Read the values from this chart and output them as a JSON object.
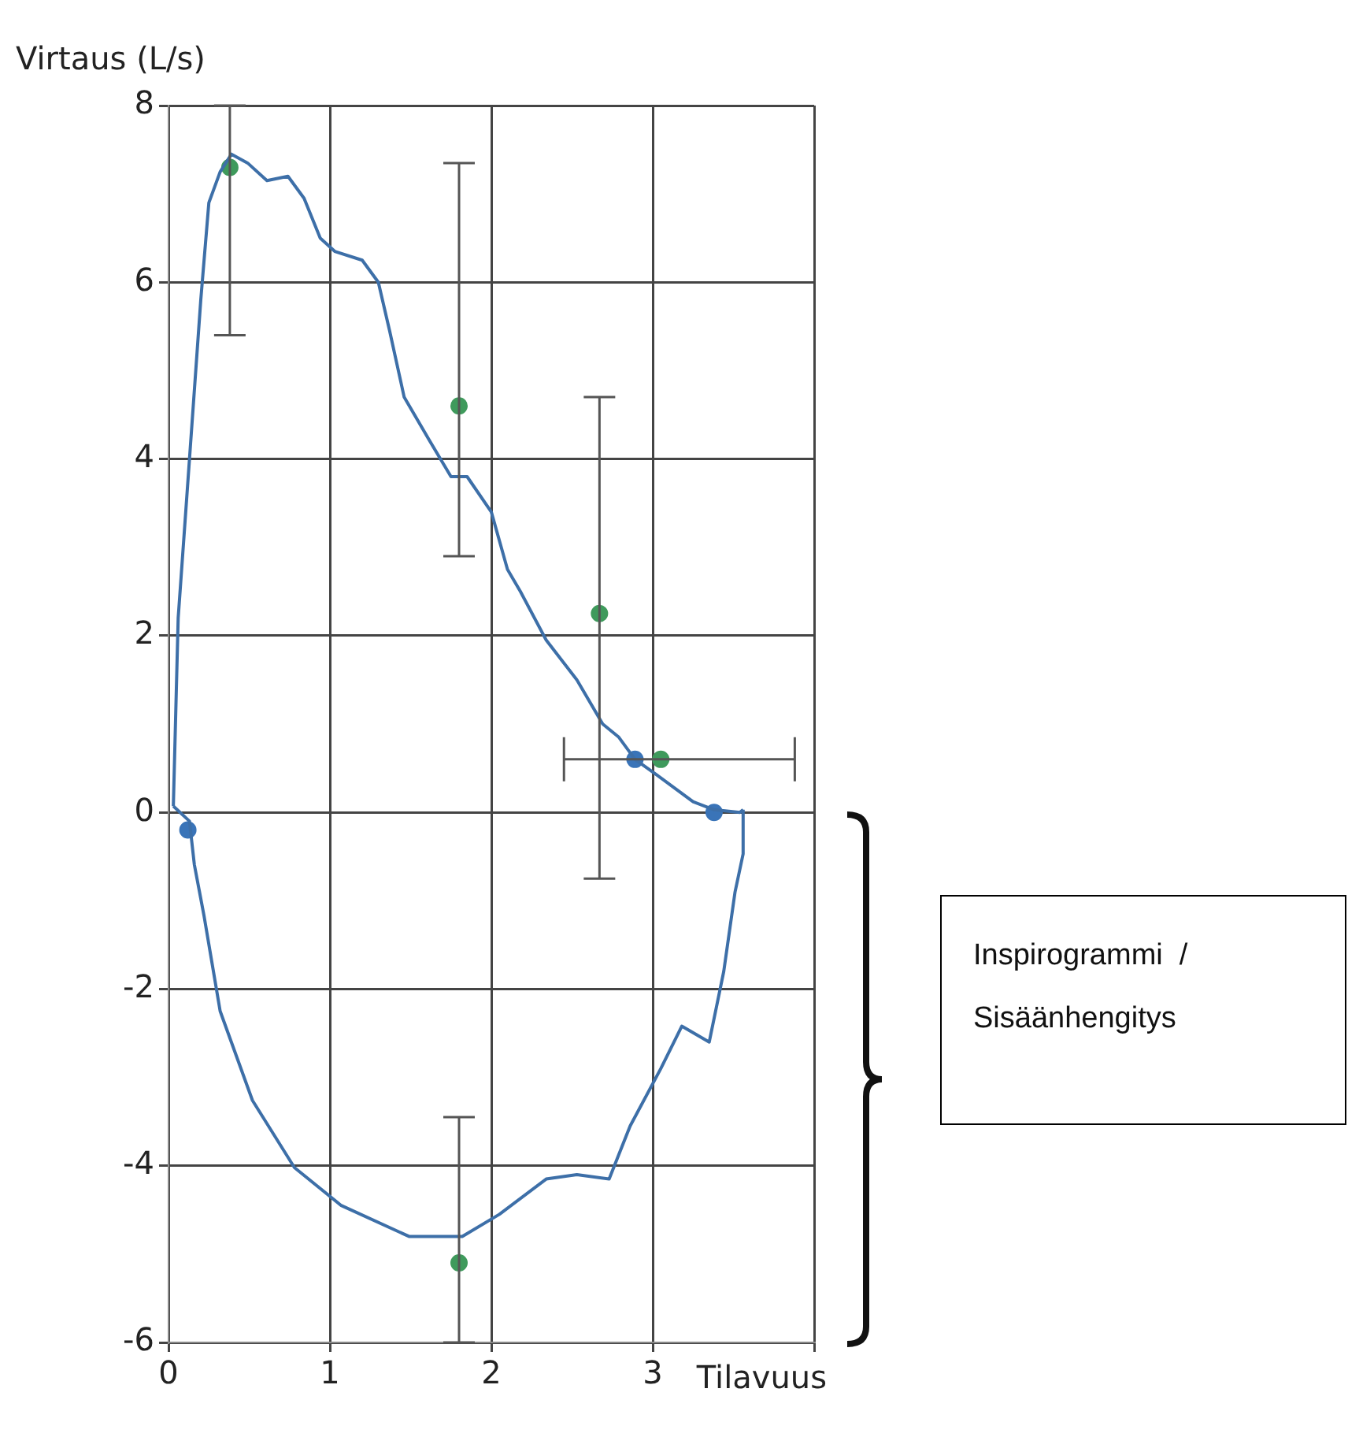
{
  "chart_data": {
    "type": "line",
    "ylabel": "Virtaus (L/s)",
    "xlabel": "Tilavuus",
    "xlim": [
      0,
      4
    ],
    "xticks": [
      0,
      1,
      2,
      3,
      {
        "value": 4,
        "label": null
      }
    ],
    "ylim": [
      -6,
      8
    ],
    "yticks": [
      -6,
      -4,
      -2,
      0,
      2,
      4,
      6,
      8
    ],
    "grid": true,
    "annotations": [
      "Inspirogrammi  /\nSisäänhengitys"
    ],
    "series": [
      {
        "color": "#3d6fa8",
        "marker": "none",
        "x": [
          0.03,
          0.06,
          0.13,
          0.2,
          0.25,
          0.32,
          0.39,
          0.49,
          0.61,
          0.74,
          0.84,
          0.94,
          1.03,
          1.2,
          1.3,
          1.37,
          1.46,
          1.62,
          1.75,
          1.85,
          2.0,
          2.1,
          2.18,
          2.34,
          2.53,
          2.69,
          2.79,
          2.89,
          3.02,
          3.25,
          3.38,
          3.54,
          3.56
        ],
        "values": [
          0.07,
          2.2,
          4.0,
          5.8,
          6.9,
          7.25,
          7.45,
          7.35,
          7.15,
          7.2,
          6.95,
          6.5,
          6.35,
          6.25,
          6.0,
          5.45,
          4.7,
          4.2,
          3.8,
          3.8,
          3.4,
          2.75,
          2.5,
          1.95,
          1.5,
          1.0,
          0.85,
          0.6,
          0.43,
          0.12,
          0.03,
          0,
          0.03
        ]
      },
      {
        "color": "#3d6fa8",
        "marker": "none",
        "x": [
          0.03,
          0.13,
          0.16,
          0.22,
          0.32,
          0.52,
          0.78,
          1.07,
          1.49,
          1.82,
          2.05,
          2.34,
          2.53,
          2.73,
          2.86,
          3.05,
          3.18,
          3.35,
          3.44,
          3.51,
          3.56,
          3.56
        ],
        "values": [
          0.07,
          -0.1,
          -0.59,
          -1.17,
          -2.25,
          -3.26,
          -4.02,
          -4.45,
          -4.8,
          -4.8,
          -4.55,
          -4.15,
          -4.1,
          -4.15,
          -3.55,
          -2.9,
          -2.42,
          -2.6,
          -1.8,
          -0.9,
          -0.47,
          0.03
        ]
      },
      {
        "type": "scatter",
        "color": "#3a74b8",
        "marker": "circle",
        "x": [
          0.12,
          2.89,
          3.38
        ],
        "values": [
          -0.2,
          0.6,
          0.0
        ]
      },
      {
        "type": "scatter",
        "color": "#3f9a5c",
        "marker": "circle",
        "x": [
          0.38,
          1.8,
          2.67,
          3.05,
          1.8
        ],
        "values": [
          7.3,
          4.6,
          2.25,
          0.6,
          -5.1
        ],
        "errors": [
          [
            5.4,
            8
          ],
          [
            2.9,
            7.35
          ],
          [
            -0.75,
            4.7
          ],
          null,
          [
            -6,
            -3.45
          ]
        ],
        "xerrors": [
          null,
          null,
          null,
          [
            2.45,
            3.88
          ],
          null
        ]
      }
    ]
  }
}
